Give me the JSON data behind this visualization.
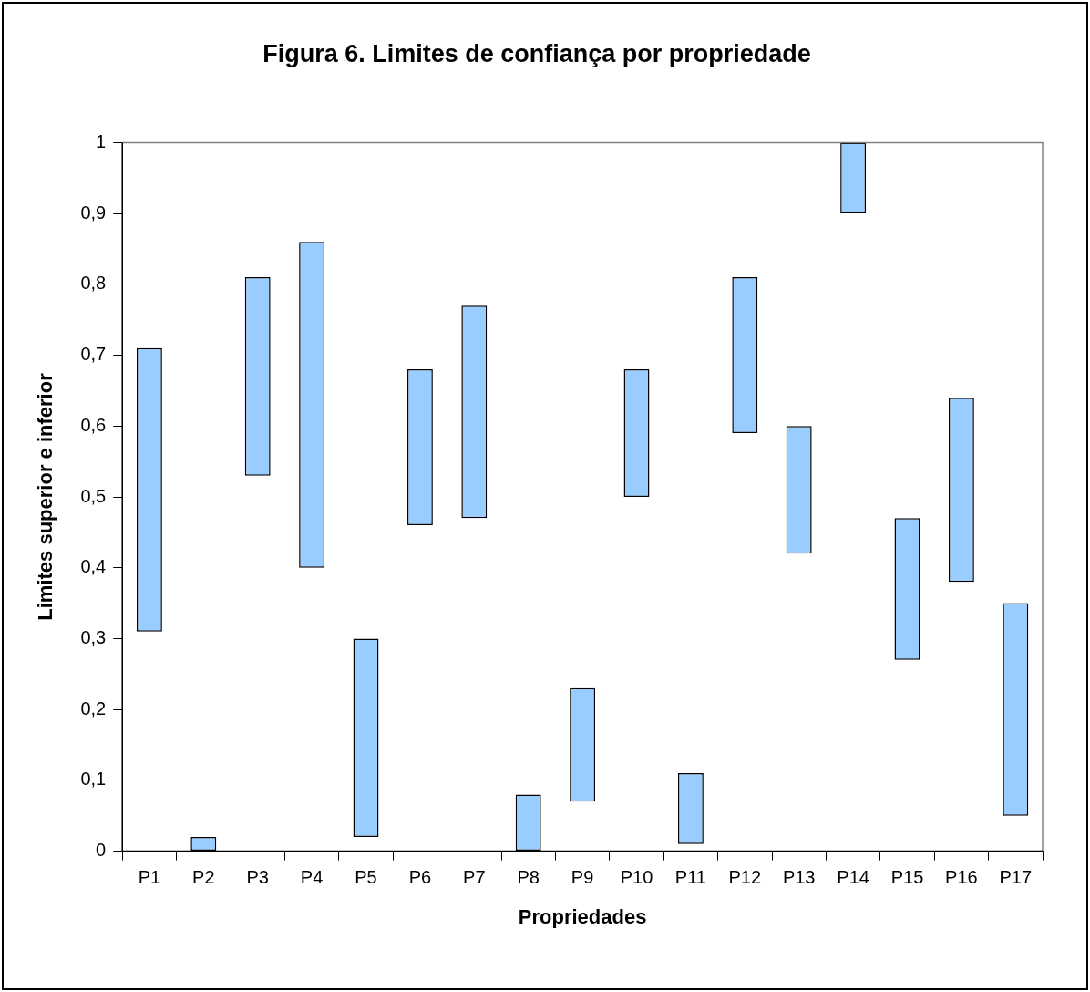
{
  "chart_data": {
    "type": "bar",
    "title": "Figura 6. Limites de confiança por propriedade",
    "xlabel": "Propriedades",
    "ylabel": "Limites superior e inferior",
    "categories": [
      "P1",
      "P2",
      "P3",
      "P4",
      "P5",
      "P6",
      "P7",
      "P8",
      "P9",
      "P10",
      "P11",
      "P12",
      "P13",
      "P14",
      "P15",
      "P16",
      "P17"
    ],
    "base": [
      0.31,
      0,
      0.53,
      0.4,
      0.02,
      0.46,
      0.47,
      0,
      0.07,
      0.5,
      0.01,
      0.59,
      0.42,
      0.9,
      0.27,
      0.38,
      0.05
    ],
    "values": [
      0.4,
      0.02,
      0.28,
      0.46,
      0.28,
      0.22,
      0.3,
      0.08,
      0.16,
      0.18,
      0.1,
      0.22,
      0.18,
      0.1,
      0.2,
      0.26,
      0.3
    ],
    "color": "#99ccff",
    "ylim": [
      0,
      1
    ],
    "yticks": [
      0,
      {
        "value": 0.1,
        "label": "0,1"
      },
      {
        "value": 0.2,
        "label": "0,2"
      },
      {
        "value": 0.3,
        "label": "0,3"
      },
      {
        "value": 0.4,
        "label": "0,4"
      },
      {
        "value": 0.5,
        "label": "0,5"
      },
      {
        "value": 0.6,
        "label": "0,6"
      },
      {
        "value": 0.7,
        "label": "0,7"
      },
      {
        "value": 0.8,
        "label": "0,8"
      },
      {
        "value": 0.9,
        "label": "0,9"
      },
      1
    ],
    "grid": false,
    "legend": false
  }
}
